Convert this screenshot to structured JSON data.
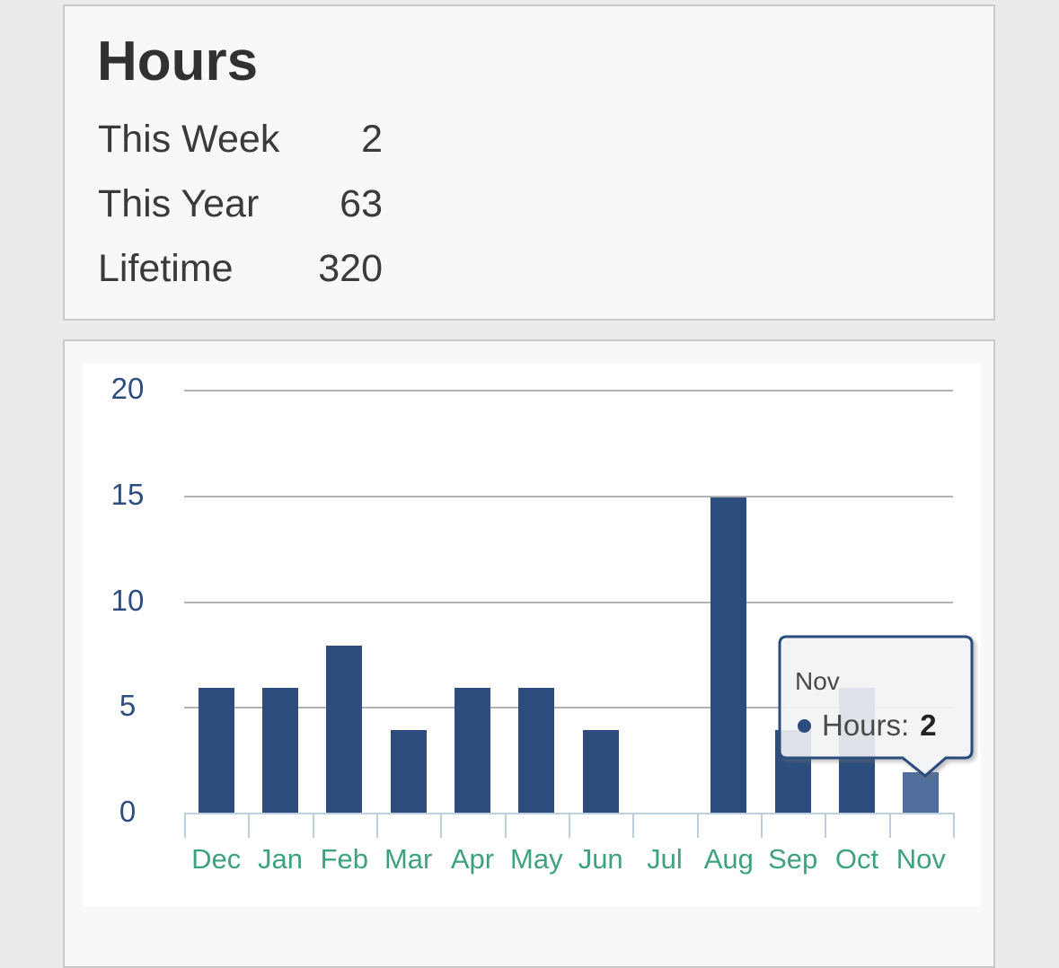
{
  "summary": {
    "title": "Hours",
    "rows": [
      {
        "label": "This Week",
        "value": "2"
      },
      {
        "label": "This Year",
        "value": "63"
      },
      {
        "label": "Lifetime",
        "value": "320"
      }
    ]
  },
  "chart_data": {
    "type": "bar",
    "title": "",
    "xlabel": "",
    "ylabel": "",
    "categories": [
      "Dec",
      "Jan",
      "Feb",
      "Mar",
      "Apr",
      "May",
      "Jun",
      "Jul",
      "Aug",
      "Sep",
      "Oct",
      "Nov"
    ],
    "series": [
      {
        "name": "Hours",
        "values": [
          6,
          6,
          8,
          4,
          6,
          6,
          4,
          0,
          15,
          4,
          6,
          2
        ]
      }
    ],
    "ylim": [
      0,
      20
    ],
    "yticks": [
      0,
      5,
      10,
      15,
      20
    ],
    "grid": true,
    "legend_position": "none",
    "highlighted_category": "Nov",
    "colors": {
      "bar": "#2c4d7d",
      "bar_highlight": "#4f6e9d",
      "gridline": "#b3b3b3",
      "axis": "#bccfe1",
      "y_tick_label": "#2f4d7f",
      "x_tick_label": "#3da37c"
    }
  },
  "tooltip": {
    "title": "Nov",
    "series_label": "Hours:",
    "value": "2",
    "marker_color": "#2b4c7d",
    "border_color": "#2b4c7d",
    "background_color": "rgba(250,251,253,0.85)"
  }
}
